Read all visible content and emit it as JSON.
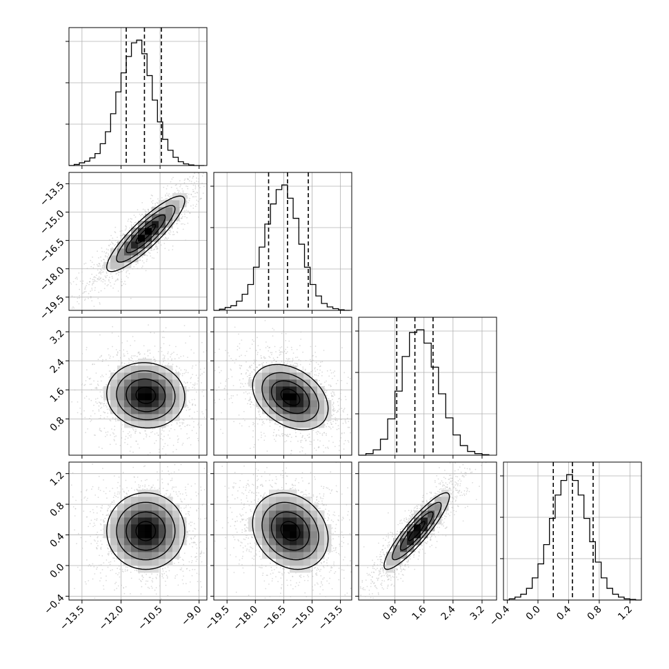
{
  "chart_data": {
    "type": "corner",
    "params": [
      {
        "name": "",
        "range": [
          -14.0,
          -8.7
        ],
        "ticks": [
          -13.5,
          -12.0,
          -10.5,
          -9.0
        ],
        "tick_labels": [
          "−13.5",
          "−12.0",
          "−10.5",
          "−9.0"
        ],
        "quantiles": [
          -11.8,
          -11.1,
          -10.45
        ],
        "hist": {
          "bin_edges": [
            -14.0,
            -13.8,
            -13.6,
            -13.4,
            -13.2,
            -13.0,
            -12.8,
            -12.6,
            -12.4,
            -12.2,
            -12.0,
            -11.8,
            -11.6,
            -11.4,
            -11.2,
            -11.0,
            -10.8,
            -10.6,
            -10.4,
            -10.2,
            -10.0,
            -9.8,
            -9.6,
            -9.4,
            -9.2,
            -9.0,
            -8.8
          ],
          "counts": [
            0,
            2,
            5,
            8,
            14,
            22,
            40,
            62,
            95,
            135,
            170,
            200,
            225,
            230,
            205,
            165,
            120,
            80,
            48,
            28,
            15,
            7,
            3,
            1,
            0,
            0
          ]
        }
      },
      {
        "name": "",
        "range": [
          -20.2,
          -12.9
        ],
        "ticks": [
          -19.5,
          -18.0,
          -16.5,
          -15.0,
          -13.5
        ],
        "tick_labels": [
          "−19.5",
          "−18.0",
          "−16.5",
          "−15.0",
          "−13.5"
        ],
        "quantiles": [
          -17.3,
          -16.3,
          -15.2
        ],
        "hist": {
          "bin_edges": [
            -20.2,
            -19.9,
            -19.6,
            -19.3,
            -19.0,
            -18.7,
            -18.4,
            -18.1,
            -17.8,
            -17.5,
            -17.2,
            -16.9,
            -16.6,
            -16.3,
            -16.0,
            -15.7,
            -15.4,
            -15.1,
            -14.8,
            -14.5,
            -14.2,
            -13.9,
            -13.6,
            -13.3,
            -13.0
          ],
          "counts": [
            0,
            2,
            5,
            8,
            16,
            28,
            45,
            75,
            110,
            150,
            185,
            210,
            218,
            195,
            160,
            115,
            75,
            45,
            25,
            12,
            6,
            3,
            1,
            0
          ]
        }
      },
      {
        "name": "",
        "range": [
          -0.2,
          3.6
        ],
        "ticks": [
          0.8,
          1.6,
          2.4,
          3.2
        ],
        "tick_labels": [
          "0.8",
          "1.6",
          "2.4",
          "3.2"
        ],
        "quantiles": [
          0.85,
          1.35,
          1.85
        ],
        "hist": {
          "bin_edges": [
            -0.2,
            0.0,
            0.2,
            0.4,
            0.6,
            0.8,
            1.0,
            1.2,
            1.4,
            1.6,
            1.8,
            2.0,
            2.2,
            2.4,
            2.6,
            2.8,
            3.0,
            3.2,
            3.4
          ],
          "counts": [
            0,
            3,
            10,
            30,
            68,
            120,
            185,
            230,
            235,
            210,
            165,
            115,
            70,
            38,
            18,
            7,
            3,
            1
          ]
        }
      },
      {
        "name": "",
        "range": [
          -0.45,
          1.35
        ],
        "ticks": [
          -0.4,
          0.0,
          0.4,
          0.8,
          1.2
        ],
        "tick_labels": [
          "−0.4",
          "0.0",
          "0.4",
          "0.8",
          "1.2"
        ],
        "quantiles": [
          0.2,
          0.45,
          0.72
        ],
        "hist": {
          "bin_edges": [
            -0.45,
            -0.375,
            -0.3,
            -0.225,
            -0.15,
            -0.075,
            0.0,
            0.075,
            0.15,
            0.225,
            0.3,
            0.375,
            0.45,
            0.525,
            0.6,
            0.675,
            0.75,
            0.825,
            0.9,
            0.975,
            1.05,
            1.125,
            1.2,
            1.275,
            1.35
          ],
          "counts": [
            0,
            2,
            5,
            10,
            20,
            38,
            62,
            95,
            140,
            180,
            205,
            215,
            205,
            180,
            140,
            100,
            65,
            38,
            20,
            10,
            5,
            2,
            1,
            0
          ]
        }
      }
    ],
    "pairs": [
      {
        "x": 0,
        "y": 1,
        "center": [
          -11.05,
          -16.15
        ],
        "sd": [
          0.75,
          1.0
        ],
        "corr": 0.88
      },
      {
        "x": 0,
        "y": 2,
        "center": [
          -11.05,
          1.45
        ],
        "sd": [
          0.75,
          0.45
        ],
        "corr": -0.05
      },
      {
        "x": 1,
        "y": 2,
        "center": [
          -16.15,
          1.4
        ],
        "sd": [
          1.0,
          0.45
        ],
        "corr": -0.35
      },
      {
        "x": 0,
        "y": 3,
        "center": [
          -11.05,
          0.45
        ],
        "sd": [
          0.75,
          0.25
        ],
        "corr": 0.0
      },
      {
        "x": 1,
        "y": 3,
        "center": [
          -16.15,
          0.45
        ],
        "sd": [
          1.0,
          0.25
        ],
        "corr": -0.2
      },
      {
        "x": 2,
        "y": 3,
        "center": [
          1.4,
          0.45
        ],
        "sd": [
          0.45,
          0.25
        ],
        "corr": 0.9
      }
    ],
    "contour_levels": [
      0.5,
      1.0,
      1.5,
      2.0
    ],
    "grid": true,
    "colors": {
      "line": "#000000",
      "points": "#bdbdbd",
      "grid": "#b0b0b0",
      "hist": "#000000"
    }
  }
}
